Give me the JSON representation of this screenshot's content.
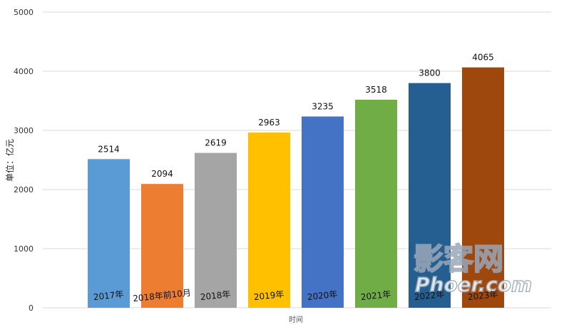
{
  "chart_data": {
    "type": "bar",
    "categories": [
      "2017年",
      "2018年前10月",
      "2018年",
      "2019年",
      "2020年",
      "2021年",
      "2022年",
      "2023年"
    ],
    "values": [
      2514,
      2094,
      2619,
      2963,
      3235,
      3518,
      3800,
      4065
    ],
    "colors": [
      "#5b9bd5",
      "#ed7d31",
      "#a5a5a5",
      "#ffc000",
      "#4472c4",
      "#70ad47",
      "#255e91",
      "#9e480e"
    ],
    "title": "",
    "xlabel": "时间",
    "ylabel": "单位：亿元",
    "ylim": [
      0,
      5000
    ],
    "yticks": [
      0,
      1000,
      2000,
      3000,
      4000,
      5000
    ],
    "grid": true,
    "legend": "none",
    "data_labels": true
  },
  "watermark": {
    "line1": "影客网",
    "line2": "Phoer.com"
  }
}
